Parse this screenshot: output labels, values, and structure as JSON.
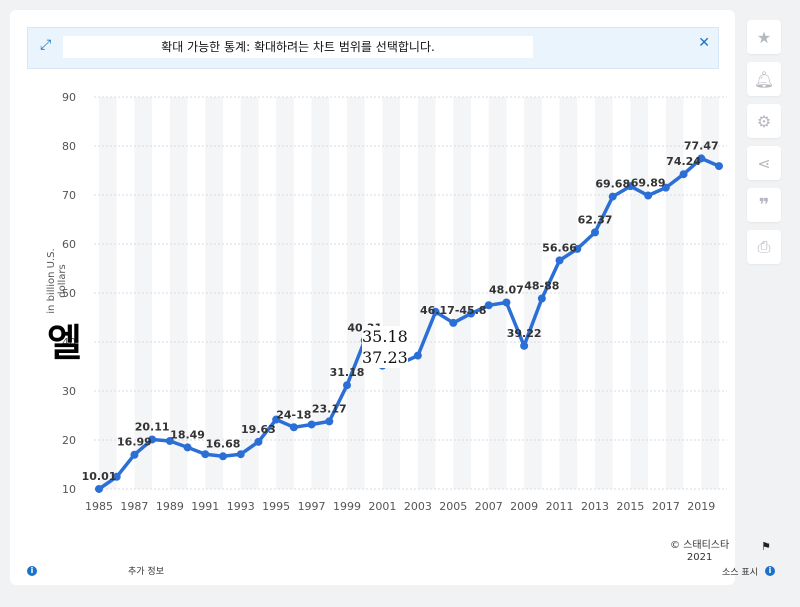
{
  "banner": {
    "text": "확대 가능한 통계: 확대하려는 차트 범위를 선택합니다."
  },
  "sidebar": {
    "buttons": [
      "star-icon",
      "bell-icon",
      "gear-icon",
      "share-icon",
      "quote-icon",
      "print-icon"
    ]
  },
  "footer": {
    "info_label": "추가 정보",
    "source_label": "소스 표시",
    "copyright_line1": "© 스태티스타",
    "copyright_line2": "2021"
  },
  "overlays": {
    "big_glyph": "엘",
    "callout_line1": "35.18",
    "callout_line2": "37.23"
  },
  "colors": {
    "line": "#2b6fd6",
    "band": "#f4f5f7",
    "grid": "#d8dbe0"
  },
  "chart_data": {
    "type": "line",
    "ylabel": "in billion U.S. dollars",
    "ylim": [
      10,
      90
    ],
    "yticks": [
      10,
      20,
      30,
      40,
      50,
      60,
      70,
      80,
      90
    ],
    "xticks": [
      1985,
      1987,
      1989,
      1991,
      1993,
      1995,
      1997,
      1999,
      2001,
      2003,
      2005,
      2007,
      2009,
      2011,
      2013,
      2015,
      2017,
      2019
    ],
    "x": [
      1985,
      1986,
      1987,
      1988,
      1989,
      1990,
      1991,
      1992,
      1993,
      1994,
      1995,
      1996,
      1997,
      1998,
      1999,
      2000,
      2001,
      2002,
      2003,
      2004,
      2005,
      2006,
      2007,
      2008,
      2009,
      2010,
      2011,
      2012,
      2013,
      2014,
      2015,
      2016,
      2017,
      2018,
      2019,
      2020
    ],
    "y": [
      10.01,
      12.5,
      16.99,
      20.11,
      19.8,
      18.49,
      17.1,
      16.68,
      17.1,
      19.63,
      24.18,
      22.6,
      23.17,
      23.8,
      31.18,
      40.31,
      35.18,
      35.6,
      37.23,
      46.17,
      43.9,
      45.8,
      47.5,
      48.07,
      39.22,
      48.88,
      56.66,
      59.0,
      62.37,
      69.68,
      71.8,
      69.89,
      71.5,
      74.24,
      77.47,
      75.9
    ],
    "data_labels": [
      {
        "x": 1985,
        "text": "10.01"
      },
      {
        "x": 1987,
        "text": "16.99"
      },
      {
        "x": 1988,
        "text": "20.11"
      },
      {
        "x": 1990,
        "text": "18.49"
      },
      {
        "x": 1992,
        "text": "16.68"
      },
      {
        "x": 1994,
        "text": "19.63"
      },
      {
        "x": 1996,
        "text": "24-18"
      },
      {
        "x": 1998,
        "text": "23.17"
      },
      {
        "x": 1999,
        "text": "31.18"
      },
      {
        "x": 2000,
        "text": "40.31"
      },
      {
        "x": 2005,
        "text": "46.17-45.8"
      },
      {
        "x": 2008,
        "text": "48.07"
      },
      {
        "x": 2009,
        "text": "39.22"
      },
      {
        "x": 2010,
        "text": "48-88"
      },
      {
        "x": 2011,
        "text": "56.66"
      },
      {
        "x": 2013,
        "text": "62.37"
      },
      {
        "x": 2014,
        "text": "69.68"
      },
      {
        "x": 2016,
        "text": "69.89"
      },
      {
        "x": 2018,
        "text": "74.24"
      },
      {
        "x": 2019,
        "text": "77.47"
      }
    ]
  }
}
